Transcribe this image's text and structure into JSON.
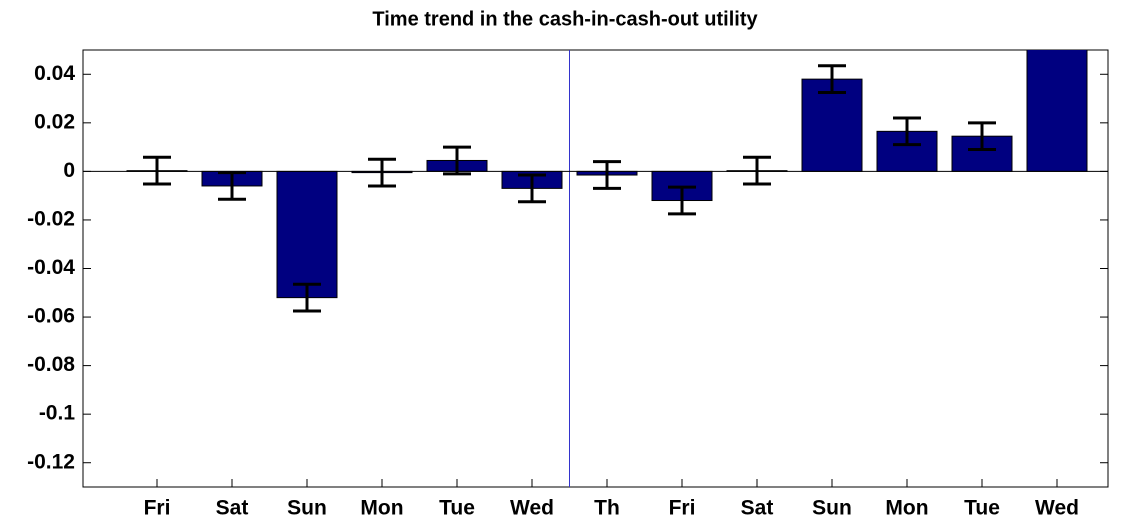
{
  "chart_data": {
    "type": "bar",
    "title": "Time trend in the cash-in-cash-out utility",
    "categories": [
      "Fri",
      "Sat",
      "Sun",
      "Mon",
      "Tue",
      "Wed",
      "Th",
      "Fri",
      "Sat",
      "Sun",
      "Mon",
      "Tue",
      "Wed"
    ],
    "values": [
      0.0003,
      -0.006,
      -0.052,
      -0.0005,
      0.0045,
      -0.007,
      -0.0015,
      -0.012,
      0.0003,
      0.038,
      0.0165,
      0.0145,
      0.06
    ],
    "errors": [
      0.0055,
      0.0055,
      0.0055,
      0.0055,
      0.0055,
      0.0055,
      0.0055,
      0.0055,
      0.0055,
      0.0055,
      0.0055,
      0.0055,
      0.0055
    ],
    "color": "#000080",
    "ylim": [
      -0.13,
      0.05
    ],
    "yticks": [
      -0.12,
      -0.1,
      -0.08,
      -0.06,
      -0.04,
      -0.02,
      0,
      0.02,
      0.04
    ]
  }
}
